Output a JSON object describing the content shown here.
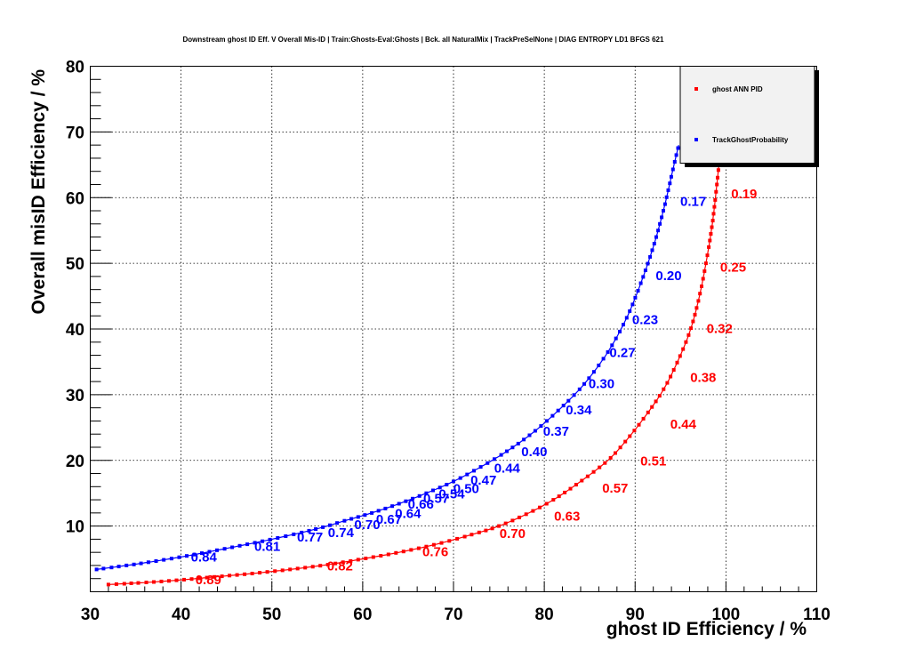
{
  "chart_data": {
    "type": "line",
    "title": "Downstream ghost ID Eff. V Overall Mis-ID | Train:Ghosts-Eval:Ghosts | Bck. all NaturalMix | TrackPreSelNone | DIAG ENTROPY LD1 BFGS 621",
    "xlabel": "ghost ID Efficiency / %",
    "ylabel": "Overall misID Efficiency / %",
    "xlim": [
      30,
      110
    ],
    "ylim": [
      0,
      80
    ],
    "xticks": [
      "30",
      "40",
      "50",
      "60",
      "70",
      "80",
      "90",
      "100",
      "110"
    ],
    "yticks": [
      "10",
      "20",
      "30",
      "40",
      "50",
      "60",
      "70",
      "80"
    ],
    "grid": true,
    "legend_position": "top-right",
    "series": [
      {
        "name": "ghost ANN PID",
        "color": "#ff0000",
        "x": [
          32,
          36,
          40,
          44,
          48,
          52,
          56,
          60,
          64,
          68,
          72,
          75,
          78,
          81,
          84,
          87,
          89,
          91,
          93,
          94.5,
          96,
          97,
          97.8,
          98.5,
          99,
          99.3
        ],
        "y": [
          1.1,
          1.4,
          1.8,
          2.3,
          2.8,
          3.4,
          4.1,
          5.0,
          6.0,
          7.2,
          8.7,
          10.0,
          11.8,
          14.0,
          16.8,
          20.0,
          23.0,
          26.5,
          30.5,
          34.5,
          39.5,
          44.5,
          50.0,
          56.0,
          62.0,
          66.0
        ],
        "labels": [
          {
            "text": "0.89",
            "x": 43,
            "y": 1.8
          },
          {
            "text": "0.82",
            "x": 57.5,
            "y": 3.9
          },
          {
            "text": "0.76",
            "x": 68,
            "y": 6.1
          },
          {
            "text": "0.70",
            "x": 76.5,
            "y": 8.9
          },
          {
            "text": "0.63",
            "x": 82.5,
            "y": 11.5
          },
          {
            "text": "0.57",
            "x": 87.8,
            "y": 15.8
          },
          {
            "text": "0.51",
            "x": 92,
            "y": 19.9
          },
          {
            "text": "0.44",
            "x": 95.3,
            "y": 25.5
          },
          {
            "text": "0.38",
            "x": 97.5,
            "y": 32.6
          },
          {
            "text": "0.32",
            "x": 99.3,
            "y": 40.1
          },
          {
            "text": "0.25",
            "x": 100.8,
            "y": 49.4
          },
          {
            "text": "0.19",
            "x": 102,
            "y": 60.6
          }
        ]
      },
      {
        "name": "TrackGhostProbability",
        "color": "#0000ff",
        "x": [
          30.7,
          35,
          40,
          45,
          50,
          55,
          58,
          61,
          64,
          67,
          70,
          73,
          76,
          79,
          82,
          84.5,
          87,
          89,
          90.5,
          92,
          93.2,
          94.2,
          94.8
        ],
        "y": [
          3.4,
          4.2,
          5.3,
          6.6,
          8.0,
          9.6,
          10.8,
          12.0,
          13.4,
          15.0,
          16.8,
          19.0,
          21.5,
          24.5,
          28.2,
          31.8,
          36.5,
          41.5,
          46.5,
          52.5,
          58.5,
          64.5,
          68.0
        ],
        "labels": [
          {
            "text": "0.84",
            "x": 42.5,
            "y": 5.3
          },
          {
            "text": "0.81",
            "x": 49.5,
            "y": 6.9
          },
          {
            "text": "0.77",
            "x": 54.2,
            "y": 8.3
          },
          {
            "text": "0.74",
            "x": 57.6,
            "y": 9.0
          },
          {
            "text": "0.70",
            "x": 60.5,
            "y": 10.2
          },
          {
            "text": "0.67",
            "x": 62.9,
            "y": 11.0
          },
          {
            "text": "0.64",
            "x": 65,
            "y": 11.9
          },
          {
            "text": "0.66",
            "x": 66.4,
            "y": 13.3
          },
          {
            "text": "0.57",
            "x": 68.1,
            "y": 14.2
          },
          {
            "text": "0.54",
            "x": 69.8,
            "y": 14.9
          },
          {
            "text": "0.50",
            "x": 71.4,
            "y": 15.7
          },
          {
            "text": "0.47",
            "x": 73.3,
            "y": 17.0
          },
          {
            "text": "0.44",
            "x": 75.9,
            "y": 18.8
          },
          {
            "text": "0.40",
            "x": 78.9,
            "y": 21.3
          },
          {
            "text": "0.37",
            "x": 81.3,
            "y": 24.4
          },
          {
            "text": "0.34",
            "x": 83.8,
            "y": 27.7
          },
          {
            "text": "0.30",
            "x": 86.3,
            "y": 31.7
          },
          {
            "text": "0.27",
            "x": 88.6,
            "y": 36.4
          },
          {
            "text": "0.23",
            "x": 91.1,
            "y": 41.4
          },
          {
            "text": "0.20",
            "x": 93.7,
            "y": 48.1
          },
          {
            "text": "0.17",
            "x": 96.4,
            "y": 59.4
          }
        ]
      }
    ]
  }
}
